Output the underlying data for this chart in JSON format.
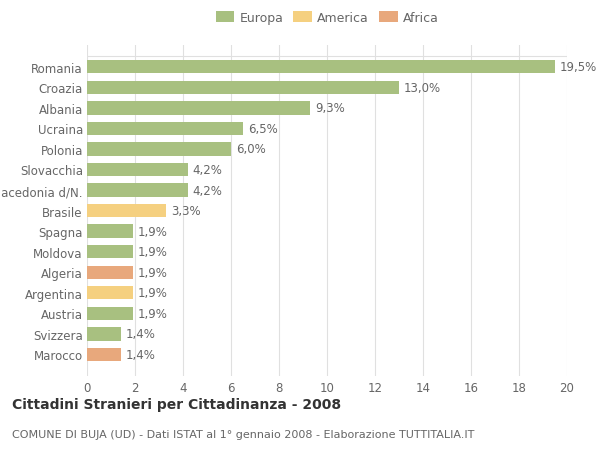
{
  "title": "Cittadini Stranieri per Cittadinanza - 2008",
  "subtitle": "COMUNE DI BUJA (UD) - Dati ISTAT al 1° gennaio 2008 - Elaborazione TUTTITALIA.IT",
  "categories": [
    "Marocco",
    "Svizzera",
    "Austria",
    "Argentina",
    "Algeria",
    "Moldova",
    "Spagna",
    "Brasile",
    "Macedonia d/N.",
    "Slovacchia",
    "Polonia",
    "Ucraina",
    "Albania",
    "Croazia",
    "Romania"
  ],
  "values": [
    1.4,
    1.4,
    1.9,
    1.9,
    1.9,
    1.9,
    1.9,
    3.3,
    4.2,
    4.2,
    6.0,
    6.5,
    9.3,
    13.0,
    19.5
  ],
  "colors": [
    "#e8a87c",
    "#a8c080",
    "#a8c080",
    "#f5d080",
    "#e8a87c",
    "#a8c080",
    "#a8c080",
    "#f5d080",
    "#a8c080",
    "#a8c080",
    "#a8c080",
    "#a8c080",
    "#a8c080",
    "#a8c080",
    "#a8c080"
  ],
  "legend_labels": [
    "Europa",
    "America",
    "Africa"
  ],
  "legend_colors": [
    "#a8c080",
    "#f5d080",
    "#e8a87c"
  ],
  "xlim": [
    0,
    20
  ],
  "xticks": [
    0,
    2,
    4,
    6,
    8,
    10,
    12,
    14,
    16,
    18,
    20
  ],
  "background_color": "#ffffff",
  "grid_color": "#e0e0e0",
  "bar_height": 0.65,
  "title_fontsize": 10,
  "subtitle_fontsize": 8,
  "tick_fontsize": 8.5,
  "value_fontsize": 8.5
}
